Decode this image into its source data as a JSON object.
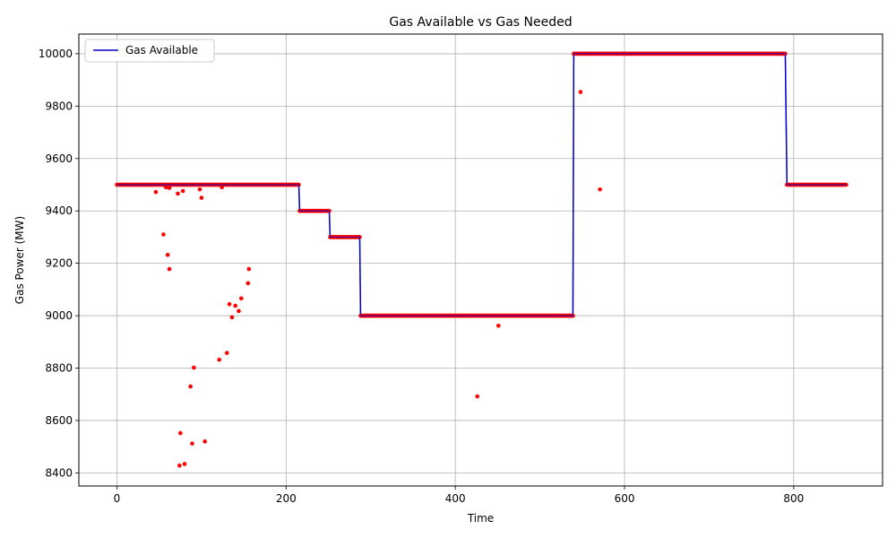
{
  "chart_data": {
    "type": "line",
    "title": "Gas Available vs Gas Needed",
    "xlabel": "Time",
    "ylabel": "Gas Power (MW)",
    "xlim": [
      -45,
      905
    ],
    "ylim": [
      8350,
      10075
    ],
    "xticks": [
      0,
      200,
      400,
      600,
      800
    ],
    "yticks": [
      8400,
      8600,
      8800,
      9000,
      9200,
      9400,
      9600,
      9800,
      10000
    ],
    "grid": true,
    "legend_position": "upper-left",
    "colors": {
      "available": "#0000cc",
      "needed": "#ff0000",
      "grid": "#b0b0b0"
    },
    "series": [
      {
        "name": "Gas Available",
        "kind": "line",
        "points": [
          [
            0,
            9500
          ],
          [
            215,
            9500
          ],
          [
            216,
            9400
          ],
          [
            251,
            9400
          ],
          [
            252,
            9300
          ],
          [
            287,
            9300
          ],
          [
            288,
            9000
          ],
          [
            539,
            9000
          ],
          [
            540,
            10000
          ],
          [
            790,
            10000
          ],
          [
            792,
            9500
          ],
          [
            862,
            9500
          ]
        ]
      },
      {
        "kind": "scatter",
        "baseline_segments": [
          [
            0,
            215,
            9500
          ],
          [
            216,
            251,
            9400
          ],
          [
            252,
            287,
            9300
          ],
          [
            288,
            539,
            9000
          ],
          [
            540,
            790,
            10000
          ],
          [
            792,
            862,
            9500
          ]
        ],
        "outliers": [
          [
            46,
            9472
          ],
          [
            55,
            9310
          ],
          [
            58,
            9490
          ],
          [
            60,
            9232
          ],
          [
            62,
            9178
          ],
          [
            62,
            9488
          ],
          [
            72,
            9466
          ],
          [
            74,
            8428
          ],
          [
            75,
            8552
          ],
          [
            78,
            9476
          ],
          [
            80,
            8434
          ],
          [
            87,
            8730
          ],
          [
            89,
            8512
          ],
          [
            91,
            8802
          ],
          [
            98,
            9482
          ],
          [
            100,
            9450
          ],
          [
            104,
            8520
          ],
          [
            121,
            8832
          ],
          [
            124,
            9490
          ],
          [
            130,
            8858
          ],
          [
            133,
            9044
          ],
          [
            136,
            8994
          ],
          [
            140,
            9038
          ],
          [
            144,
            9018
          ],
          [
            147,
            9066
          ],
          [
            155,
            9124
          ],
          [
            156,
            9178
          ],
          [
            426,
            8692
          ],
          [
            451,
            8962
          ],
          [
            548,
            9854
          ],
          [
            571,
            9482
          ]
        ]
      }
    ]
  }
}
